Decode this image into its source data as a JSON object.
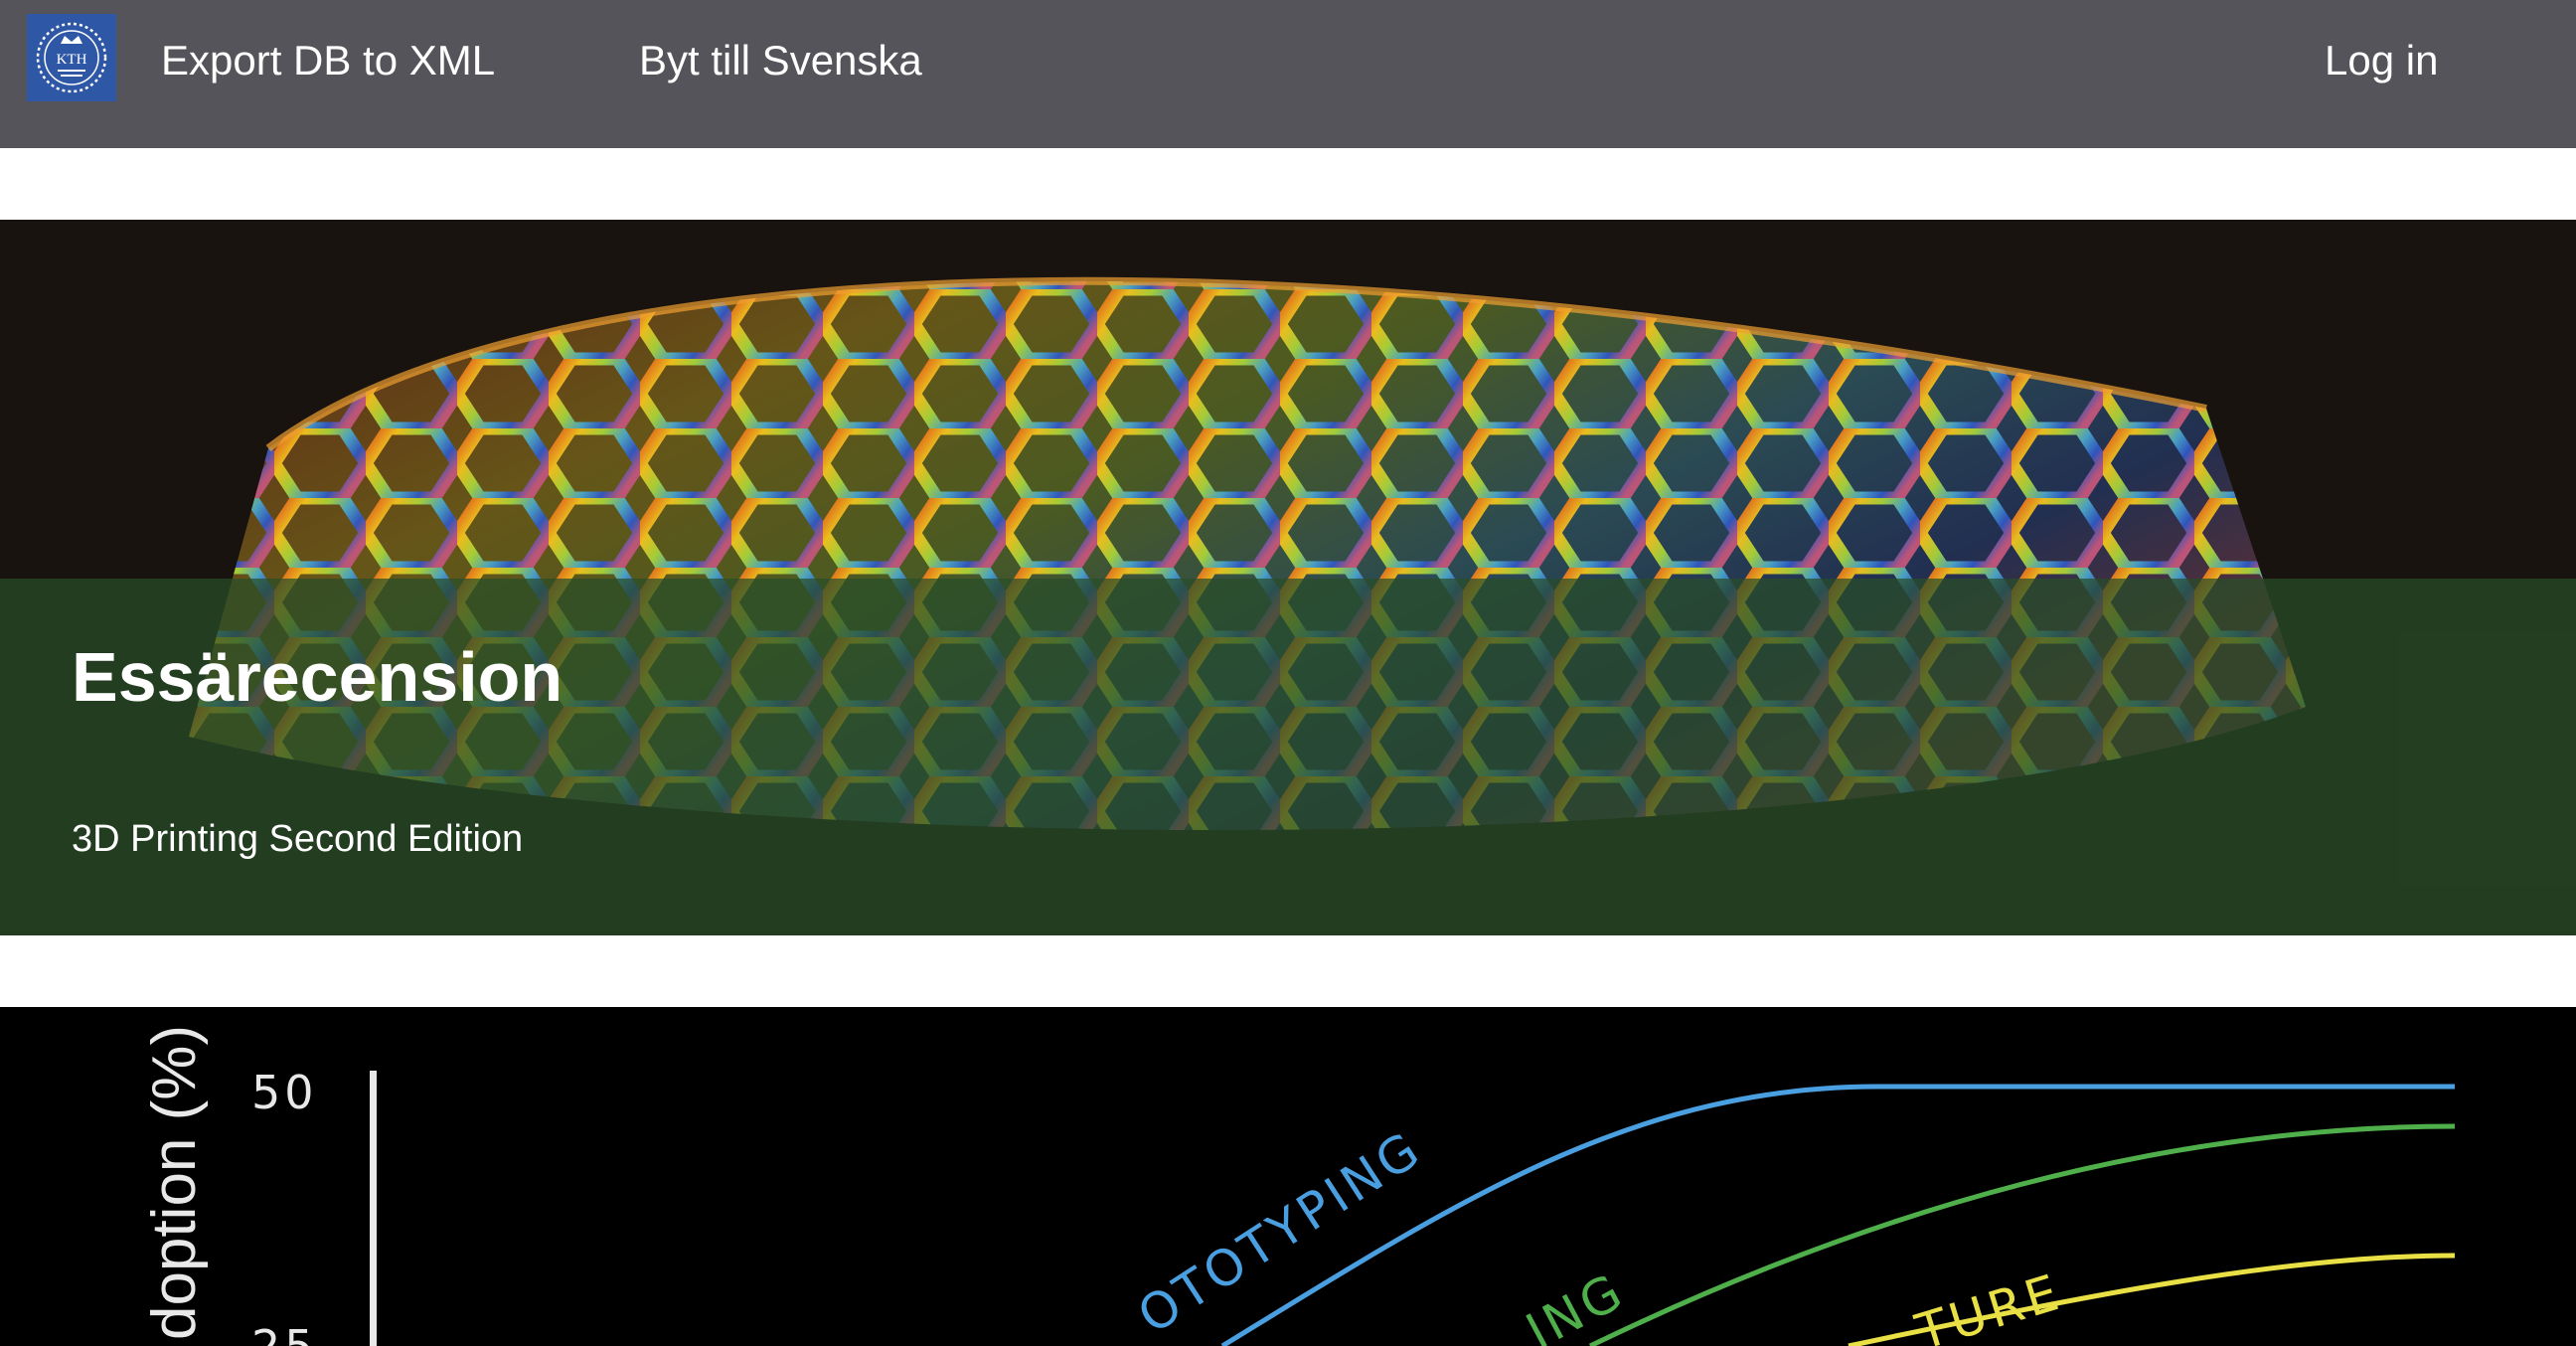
{
  "navbar": {
    "logo_text": "KTH",
    "export_label": "Export DB to XML",
    "language_label": "Byt till Svenska",
    "login_label": "Log in"
  },
  "articles": [
    {
      "title": "Essärecension",
      "subtitle": "3D Printing Second Edition",
      "image_icon": "3d-printed-lattice-image"
    },
    {
      "image_icon": "adoption-curve-chart-image",
      "chart_data": {
        "type": "line",
        "ylabel": "doption (%)",
        "yticks": [
          "50",
          "25"
        ],
        "series": [
          {
            "name": "OTOTYPING",
            "color": "#4a9fe0"
          },
          {
            "name": "ING",
            "color": "#4fb04b"
          },
          {
            "name": "TURE",
            "color": "#e8e045"
          }
        ]
      }
    }
  ],
  "colors": {
    "navbar_bg": "#54545a",
    "logo_bg": "#2e57a6",
    "hero_overlay": "#284e28"
  }
}
